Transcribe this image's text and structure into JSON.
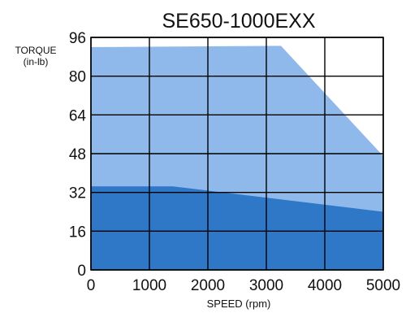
{
  "chart_data": {
    "type": "area",
    "title": "SE650-1000EXX",
    "ylabel": [
      "TORQUE",
      "(in-lb)"
    ],
    "xlabel": "SPEED (rpm)",
    "xlim": [
      0,
      5000
    ],
    "ylim": [
      0,
      96
    ],
    "xticks": [
      0,
      1000,
      2000,
      3000,
      4000,
      5000
    ],
    "yticks": [
      0,
      16,
      32,
      48,
      64,
      80,
      96
    ],
    "grid": true,
    "colors": {
      "peak": "#8fb9ea",
      "continuous": "#2e78c7",
      "grid": "#000000"
    },
    "series": [
      {
        "x": [
          0,
          3250,
          5000
        ],
        "y": [
          92,
          92.5,
          47
        ]
      },
      {
        "x": [
          0,
          1400,
          5000
        ],
        "y": [
          34.5,
          34.5,
          24
        ]
      }
    ]
  }
}
